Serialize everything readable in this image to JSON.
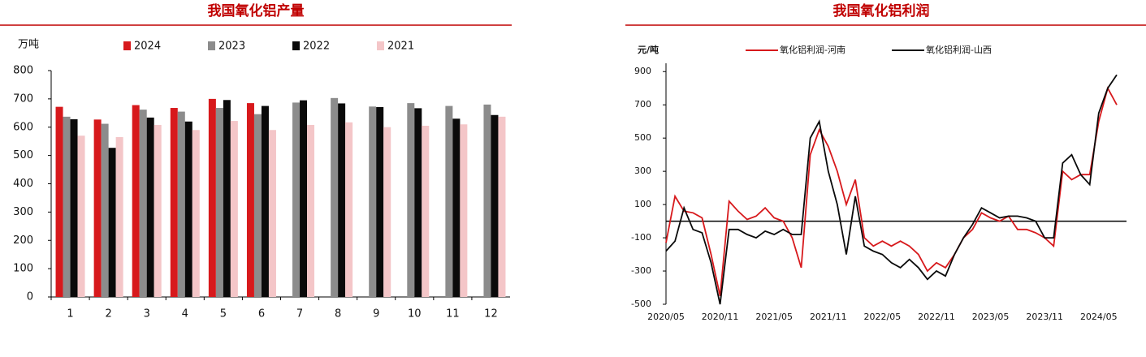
{
  "chart_data": [
    {
      "type": "bar",
      "title": "我国氧化铝产量",
      "ylabel": "万吨",
      "categories": [
        "1",
        "2",
        "3",
        "4",
        "5",
        "6",
        "7",
        "8",
        "9",
        "10",
        "11",
        "12"
      ],
      "series": [
        {
          "name": "2024",
          "color": "#d7191c",
          "values": [
            672,
            627,
            678,
            668,
            700,
            685,
            null,
            null,
            null,
            null,
            null,
            null
          ]
        },
        {
          "name": "2023",
          "color": "#8c8c8c",
          "values": [
            637,
            612,
            662,
            655,
            668,
            646,
            687,
            703,
            673,
            685,
            675,
            680
          ]
        },
        {
          "name": "2022",
          "color": "#0a0a0a",
          "values": [
            628,
            527,
            634,
            620,
            696,
            675,
            695,
            684,
            671,
            667,
            630,
            643
          ]
        },
        {
          "name": "2021",
          "color": "#f4c6c8",
          "values": [
            570,
            565,
            608,
            590,
            622,
            590,
            608,
            617,
            600,
            605,
            610,
            637
          ]
        }
      ],
      "ylim": [
        0,
        800
      ],
      "yticks": [
        0,
        100,
        200,
        300,
        400,
        500,
        600,
        700,
        800
      ]
    },
    {
      "type": "line",
      "title": "我国氧化铝利润",
      "ylabel": "元/吨",
      "x": [
        "2020/05",
        "2020/06",
        "2020/07",
        "2020/08",
        "2020/09",
        "2020/10",
        "2020/11",
        "2020/12",
        "2021/01",
        "2021/02",
        "2021/03",
        "2021/04",
        "2021/05",
        "2021/06",
        "2021/07",
        "2021/08",
        "2021/09",
        "2021/10",
        "2021/11",
        "2021/12",
        "2022/01",
        "2022/02",
        "2022/03",
        "2022/04",
        "2022/05",
        "2022/06",
        "2022/07",
        "2022/08",
        "2022/09",
        "2022/10",
        "2022/11",
        "2022/12",
        "2023/01",
        "2023/02",
        "2023/03",
        "2023/04",
        "2023/05",
        "2023/06",
        "2023/07",
        "2023/08",
        "2023/09",
        "2023/10",
        "2023/11",
        "2023/12",
        "2024/01",
        "2024/02",
        "2024/03",
        "2024/04",
        "2024/05",
        "2024/06",
        "2024/07"
      ],
      "xticks": [
        "2020/05",
        "2020/11",
        "2021/05",
        "2021/11",
        "2022/05",
        "2022/11",
        "2023/05",
        "2023/11",
        "2024/05"
      ],
      "series": [
        {
          "name": "氧化铝利润-河南",
          "color": "#d7191c",
          "values": [
            -130,
            150,
            60,
            50,
            20,
            -200,
            -450,
            120,
            60,
            10,
            30,
            80,
            20,
            0,
            -100,
            -280,
            400,
            550,
            450,
            300,
            100,
            250,
            -100,
            -150,
            -120,
            -150,
            -120,
            -150,
            -200,
            -300,
            -250,
            -280,
            -200,
            -100,
            -50,
            50,
            20,
            0,
            30,
            -50,
            -50,
            -70,
            -100,
            -150,
            300,
            250,
            280,
            280,
            600,
            800,
            700
          ]
        },
        {
          "name": "氧化铝利润-山西",
          "color": "#0a0a0a",
          "values": [
            -180,
            -120,
            80,
            -50,
            -70,
            -250,
            -500,
            -50,
            -50,
            -80,
            -100,
            -60,
            -80,
            -50,
            -80,
            -80,
            500,
            600,
            300,
            100,
            -200,
            150,
            -150,
            -180,
            -200,
            -250,
            -280,
            -230,
            -280,
            -350,
            -300,
            -330,
            -200,
            -100,
            -20,
            80,
            50,
            20,
            30,
            30,
            20,
            0,
            -100,
            -100,
            350,
            400,
            280,
            220,
            650,
            800,
            880
          ]
        }
      ],
      "ylim": [
        -500,
        950
      ],
      "yticks": [
        -500,
        -300,
        -100,
        100,
        300,
        500,
        700,
        900
      ]
    }
  ]
}
